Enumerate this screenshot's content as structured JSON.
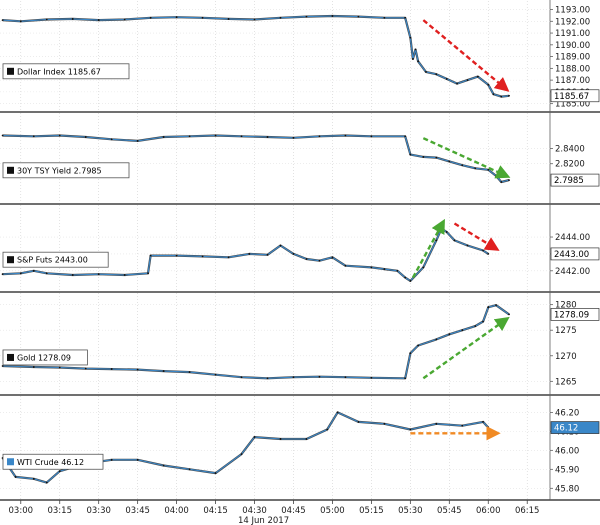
{
  "chart_data": {
    "type": "line",
    "date_label": "14 Jun 2017",
    "x_ticks": [
      "03:00",
      "03:15",
      "03:30",
      "03:45",
      "04:00",
      "04:15",
      "04:30",
      "04:45",
      "05:00",
      "05:15",
      "05:30",
      "05:45",
      "06:00",
      "06:15"
    ],
    "xlim": [
      "02:52",
      "06:23"
    ],
    "panels": [
      {
        "name": "Dollar Index",
        "legend": "Dollar Index 1185.67",
        "last_label": "1185.67",
        "color": "#3a87c8",
        "last_bg": "#ffffff",
        "last_fg": "#000000",
        "ylim": [
          1184.8,
          1193.3
        ],
        "y_ticks": [
          "1193.00",
          "1192.00",
          "1191.00",
          "1190.00",
          "1189.00",
          "1188.00",
          "1187.00",
          "1186.00",
          "1185.00"
        ],
        "arrows": [
          {
            "from": [
              "05:35",
              1192.1
            ],
            "to": [
              "06:06",
              1186.4
            ],
            "color": "#e02020"
          }
        ],
        "series": [
          {
            "x": "02:53",
            "y": 1192.1
          },
          {
            "x": "03:00",
            "y": 1192.0
          },
          {
            "x": "03:10",
            "y": 1192.15
          },
          {
            "x": "03:20",
            "y": 1192.2
          },
          {
            "x": "03:30",
            "y": 1192.1
          },
          {
            "x": "03:40",
            "y": 1192.15
          },
          {
            "x": "03:50",
            "y": 1192.3
          },
          {
            "x": "04:00",
            "y": 1192.35
          },
          {
            "x": "04:10",
            "y": 1192.3
          },
          {
            "x": "04:20",
            "y": 1192.2
          },
          {
            "x": "04:30",
            "y": 1192.15
          },
          {
            "x": "04:40",
            "y": 1192.3
          },
          {
            "x": "04:50",
            "y": 1192.4
          },
          {
            "x": "05:00",
            "y": 1192.45
          },
          {
            "x": "05:10",
            "y": 1192.4
          },
          {
            "x": "05:20",
            "y": 1192.3
          },
          {
            "x": "05:28",
            "y": 1192.3
          },
          {
            "x": "05:30",
            "y": 1190.6
          },
          {
            "x": "05:31",
            "y": 1188.8
          },
          {
            "x": "05:32",
            "y": 1189.6
          },
          {
            "x": "05:33",
            "y": 1188.6
          },
          {
            "x": "05:36",
            "y": 1187.7
          },
          {
            "x": "05:40",
            "y": 1187.5
          },
          {
            "x": "05:44",
            "y": 1187.1
          },
          {
            "x": "05:48",
            "y": 1186.7
          },
          {
            "x": "05:52",
            "y": 1187.0
          },
          {
            "x": "05:56",
            "y": 1187.3
          },
          {
            "x": "06:00",
            "y": 1186.6
          },
          {
            "x": "06:02",
            "y": 1185.8
          },
          {
            "x": "06:05",
            "y": 1185.6
          },
          {
            "x": "06:08",
            "y": 1185.67
          }
        ]
      },
      {
        "name": "30Y TSY Yield",
        "legend": "30Y TSY Yield 2.7985",
        "last_label": "2.7985",
        "color": "#3a87c8",
        "last_bg": "#ffffff",
        "last_fg": "#000000",
        "ylim": [
          2.775,
          2.88
        ],
        "y_ticks": [
          "2.8400",
          "2.8200"
        ],
        "arrows": [
          {
            "from": [
              "05:35",
              2.8535
            ],
            "to": [
              "06:06",
              2.8055
            ],
            "color": "#4aa832"
          }
        ],
        "series": [
          {
            "x": "02:53",
            "y": 2.857
          },
          {
            "x": "03:05",
            "y": 2.856
          },
          {
            "x": "03:15",
            "y": 2.857
          },
          {
            "x": "03:25",
            "y": 2.855
          },
          {
            "x": "03:35",
            "y": 2.852
          },
          {
            "x": "03:45",
            "y": 2.85
          },
          {
            "x": "03:55",
            "y": 2.855
          },
          {
            "x": "04:05",
            "y": 2.856
          },
          {
            "x": "04:15",
            "y": 2.857
          },
          {
            "x": "04:25",
            "y": 2.856
          },
          {
            "x": "04:35",
            "y": 2.855
          },
          {
            "x": "04:45",
            "y": 2.854
          },
          {
            "x": "04:55",
            "y": 2.856
          },
          {
            "x": "05:05",
            "y": 2.857
          },
          {
            "x": "05:15",
            "y": 2.856
          },
          {
            "x": "05:28",
            "y": 2.856
          },
          {
            "x": "05:30",
            "y": 2.832
          },
          {
            "x": "05:35",
            "y": 2.829
          },
          {
            "x": "05:40",
            "y": 2.828
          },
          {
            "x": "05:45",
            "y": 2.823
          },
          {
            "x": "05:50",
            "y": 2.818
          },
          {
            "x": "05:55",
            "y": 2.814
          },
          {
            "x": "06:00",
            "y": 2.812
          },
          {
            "x": "06:03",
            "y": 2.804
          },
          {
            "x": "06:05",
            "y": 2.796
          },
          {
            "x": "06:08",
            "y": 2.7985
          }
        ]
      },
      {
        "name": "S&P Futs",
        "legend": "S&P Futs 2443.00",
        "last_label": "2443.00",
        "color": "#3a87c8",
        "last_bg": "#ffffff",
        "last_fg": "#000000",
        "ylim": [
          2441.1,
          2445.6
        ],
        "y_ticks": [
          "2444.00",
          "2443.00",
          "2442.00"
        ],
        "arrows": [
          {
            "from": [
              "05:31",
              2441.6
            ],
            "to": [
              "05:42",
              2444.7
            ],
            "color": "#4aa832"
          },
          {
            "from": [
              "05:47",
              2444.8
            ],
            "to": [
              "06:02",
              2443.4
            ],
            "color": "#e02020"
          }
        ],
        "series": [
          {
            "x": "02:53",
            "y": 2441.8
          },
          {
            "x": "03:00",
            "y": 2441.85
          },
          {
            "x": "03:05",
            "y": 2442.0
          },
          {
            "x": "03:10",
            "y": 2441.85
          },
          {
            "x": "03:20",
            "y": 2441.75
          },
          {
            "x": "03:30",
            "y": 2441.8
          },
          {
            "x": "03:40",
            "y": 2441.75
          },
          {
            "x": "03:49",
            "y": 2441.85
          },
          {
            "x": "03:50",
            "y": 2442.9
          },
          {
            "x": "04:00",
            "y": 2442.9
          },
          {
            "x": "04:10",
            "y": 2442.85
          },
          {
            "x": "04:20",
            "y": 2442.8
          },
          {
            "x": "04:28",
            "y": 2443.0
          },
          {
            "x": "04:35",
            "y": 2442.95
          },
          {
            "x": "04:40",
            "y": 2443.5
          },
          {
            "x": "04:45",
            "y": 2443.0
          },
          {
            "x": "04:50",
            "y": 2442.7
          },
          {
            "x": "04:55",
            "y": 2442.6
          },
          {
            "x": "05:00",
            "y": 2442.8
          },
          {
            "x": "05:05",
            "y": 2442.3
          },
          {
            "x": "05:15",
            "y": 2442.2
          },
          {
            "x": "05:20",
            "y": 2442.1
          },
          {
            "x": "05:25",
            "y": 2442.0
          },
          {
            "x": "05:28",
            "y": 2441.6
          },
          {
            "x": "05:30",
            "y": 2441.4
          },
          {
            "x": "05:35",
            "y": 2442.2
          },
          {
            "x": "05:40",
            "y": 2443.8
          },
          {
            "x": "05:42",
            "y": 2444.5
          },
          {
            "x": "05:44",
            "y": 2444.3
          },
          {
            "x": "05:47",
            "y": 2443.8
          },
          {
            "x": "05:52",
            "y": 2443.5
          },
          {
            "x": "05:58",
            "y": 2443.2
          },
          {
            "x": "06:00",
            "y": 2443.0
          }
        ]
      },
      {
        "name": "Gold",
        "legend": "Gold 1278.09",
        "last_label": "1278.09",
        "color": "#3a87c8",
        "last_bg": "#ffffff",
        "last_fg": "#000000",
        "ylim": [
          1263.5,
          1281.3
        ],
        "y_ticks": [
          "1280",
          "1275",
          "1270",
          "1265"
        ],
        "arrows": [
          {
            "from": [
              "05:35",
              1265.6
            ],
            "to": [
              "06:06",
              1276.8
            ],
            "color": "#4aa832"
          }
        ],
        "series": [
          {
            "x": "02:53",
            "y": 1268.0
          },
          {
            "x": "03:05",
            "y": 1267.8
          },
          {
            "x": "03:15",
            "y": 1267.7
          },
          {
            "x": "03:25",
            "y": 1267.5
          },
          {
            "x": "03:35",
            "y": 1267.4
          },
          {
            "x": "03:45",
            "y": 1267.3
          },
          {
            "x": "03:55",
            "y": 1267.0
          },
          {
            "x": "04:05",
            "y": 1266.8
          },
          {
            "x": "04:15",
            "y": 1266.3
          },
          {
            "x": "04:25",
            "y": 1265.8
          },
          {
            "x": "04:35",
            "y": 1265.6
          },
          {
            "x": "04:45",
            "y": 1265.8
          },
          {
            "x": "04:55",
            "y": 1265.9
          },
          {
            "x": "05:05",
            "y": 1265.8
          },
          {
            "x": "05:15",
            "y": 1265.7
          },
          {
            "x": "05:28",
            "y": 1265.6
          },
          {
            "x": "05:30",
            "y": 1270.5
          },
          {
            "x": "05:33",
            "y": 1272.0
          },
          {
            "x": "05:40",
            "y": 1273.2
          },
          {
            "x": "05:45",
            "y": 1274.2
          },
          {
            "x": "05:50",
            "y": 1275.0
          },
          {
            "x": "05:55",
            "y": 1275.8
          },
          {
            "x": "05:58",
            "y": 1276.7
          },
          {
            "x": "06:00",
            "y": 1279.5
          },
          {
            "x": "06:03",
            "y": 1279.9
          },
          {
            "x": "06:08",
            "y": 1278.09
          }
        ]
      },
      {
        "name": "WTI Crude",
        "legend": "WTI Crude 46.12",
        "last_label": "46.12",
        "color": "#3a87c8",
        "last_bg": "#3a87c8",
        "last_fg": "#ffffff",
        "ylim": [
          45.77,
          46.26
        ],
        "y_ticks": [
          "46.20",
          "46.10",
          "46.00",
          "45.90",
          "45.80"
        ],
        "arrows": [
          {
            "from": [
              "05:30",
              46.09
            ],
            "to": [
              "06:02",
              46.09
            ],
            "color": "#f08a24"
          }
        ],
        "series": [
          {
            "x": "02:53",
            "y": 45.96
          },
          {
            "x": "02:58",
            "y": 45.86
          },
          {
            "x": "03:05",
            "y": 45.85
          },
          {
            "x": "03:10",
            "y": 45.83
          },
          {
            "x": "03:15",
            "y": 45.89
          },
          {
            "x": "03:25",
            "y": 45.93
          },
          {
            "x": "03:35",
            "y": 45.95
          },
          {
            "x": "03:45",
            "y": 45.95
          },
          {
            "x": "03:55",
            "y": 45.92
          },
          {
            "x": "04:05",
            "y": 45.9
          },
          {
            "x": "04:15",
            "y": 45.88
          },
          {
            "x": "04:25",
            "y": 45.98
          },
          {
            "x": "04:30",
            "y": 46.07
          },
          {
            "x": "04:40",
            "y": 46.06
          },
          {
            "x": "04:50",
            "y": 46.06
          },
          {
            "x": "04:58",
            "y": 46.11
          },
          {
            "x": "05:02",
            "y": 46.2
          },
          {
            "x": "05:10",
            "y": 46.15
          },
          {
            "x": "05:20",
            "y": 46.14
          },
          {
            "x": "05:30",
            "y": 46.11
          },
          {
            "x": "05:40",
            "y": 46.14
          },
          {
            "x": "05:50",
            "y": 46.13
          },
          {
            "x": "05:58",
            "y": 46.15
          },
          {
            "x": "06:00",
            "y": 46.12
          }
        ]
      }
    ]
  }
}
